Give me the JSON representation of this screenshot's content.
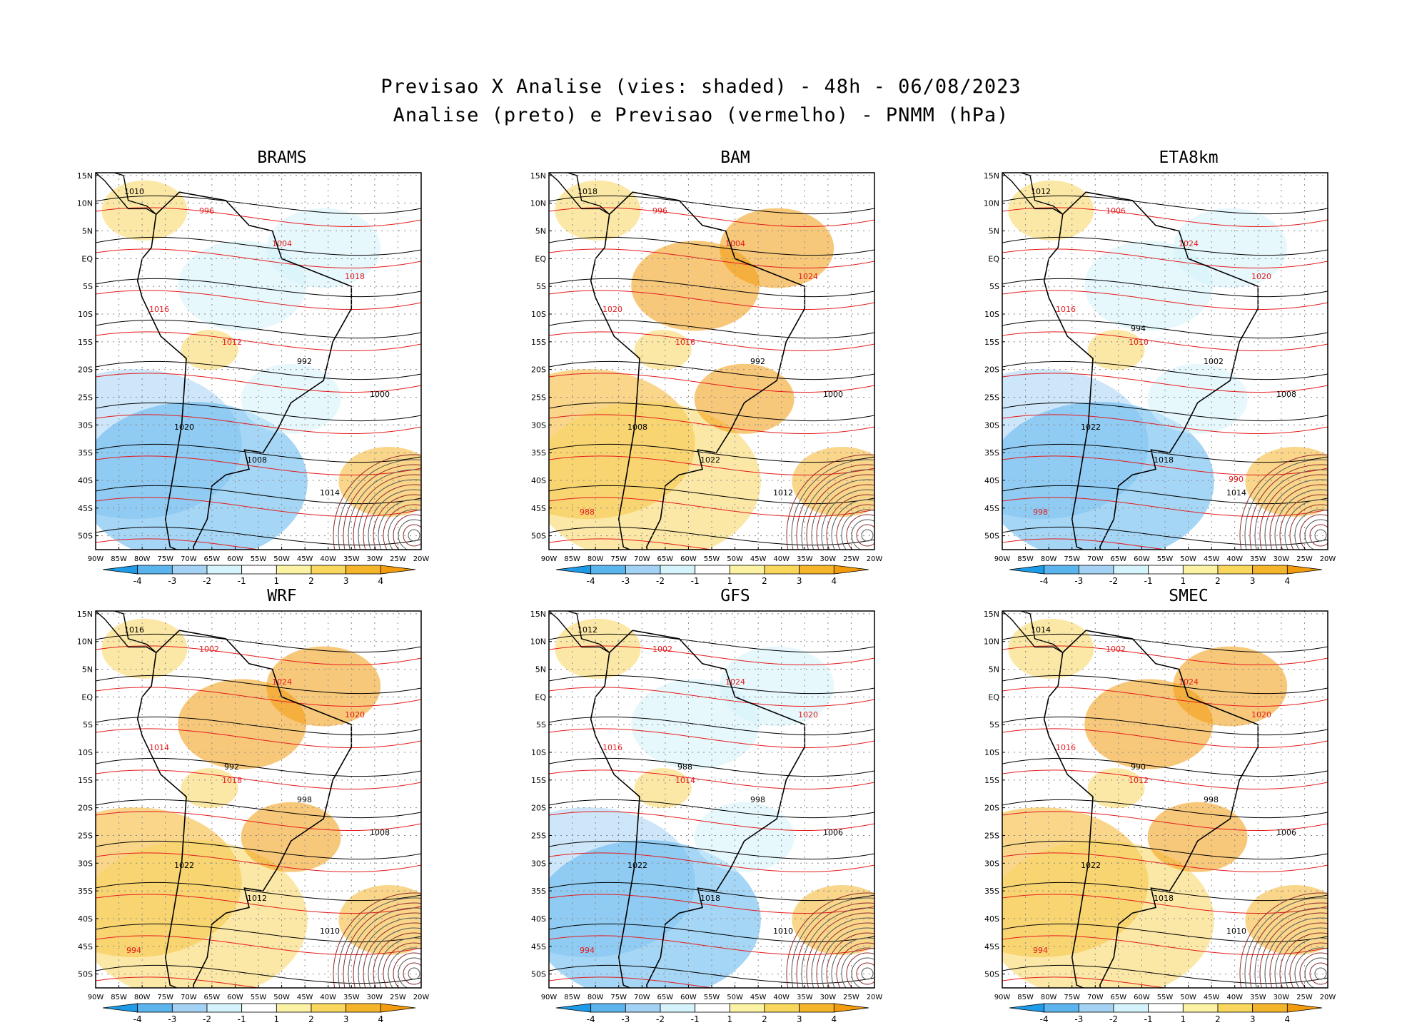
{
  "title_line1": "Previsao X Analise (vies: shaded) - 48h - 06/08/2023",
  "title_line2": "Analise (preto) e Previsao (vermelho) - PNMM (hPa)",
  "lat_labels": [
    "15N",
    "10N",
    "5N",
    "EQ",
    "5S",
    "10S",
    "15S",
    "20S",
    "25S",
    "30S",
    "35S",
    "40S",
    "45S",
    "50S"
  ],
  "lon_labels": [
    "90W",
    "85W",
    "80W",
    "75W",
    "70W",
    "65W",
    "60W",
    "55W",
    "50W",
    "45W",
    "40W",
    "35W",
    "30W",
    "25W",
    "20W"
  ],
  "colorbar": {
    "labels": [
      "-4",
      "-3",
      "-2",
      "-1",
      "1",
      "2",
      "3",
      "4"
    ],
    "colors": [
      "#1e9be8",
      "#5cb4ee",
      "#a4d2f4",
      "#d4f3fa",
      "#ffffff",
      "#fbf2a4",
      "#f9d65c",
      "#f4b52a",
      "#f29b0c"
    ]
  },
  "legend_colors": {
    "analysis": "#000000",
    "forecast": "#e41a1c"
  },
  "panels": [
    {
      "name": "BRAMS",
      "contour_labels": [
        "1010",
        "1012",
        "1014",
        "1016",
        "1008",
        "1018",
        "1020",
        "1004",
        "1000",
        "996",
        "992"
      ]
    },
    {
      "name": "BAM",
      "contour_labels": [
        "1018",
        "1016",
        "1012",
        "1020",
        "1022",
        "1024",
        "1008",
        "1004",
        "1000",
        "996",
        "992",
        "988"
      ]
    },
    {
      "name": "ETA8km",
      "contour_labels": [
        "1012",
        "1010",
        "1014",
        "1016",
        "1018",
        "1020",
        "1022",
        "1024",
        "1008",
        "1006",
        "1002",
        "998",
        "994",
        "990"
      ]
    },
    {
      "name": "WRF",
      "contour_labels": [
        "1016",
        "1018",
        "1010",
        "1014",
        "1012",
        "1020",
        "1022",
        "1024",
        "1008",
        "1002",
        "998",
        "994",
        "992"
      ]
    },
    {
      "name": "GFS",
      "contour_labels": [
        "1012",
        "1014",
        "1010",
        "1016",
        "1018",
        "1020",
        "1022",
        "1024",
        "1006",
        "1002",
        "998",
        "994",
        "988"
      ]
    },
    {
      "name": "SMEC",
      "contour_labels": [
        "1014",
        "1012",
        "1010",
        "1016",
        "1018",
        "1020",
        "1022",
        "1024",
        "1006",
        "1002",
        "998",
        "994",
        "990"
      ]
    }
  ]
}
